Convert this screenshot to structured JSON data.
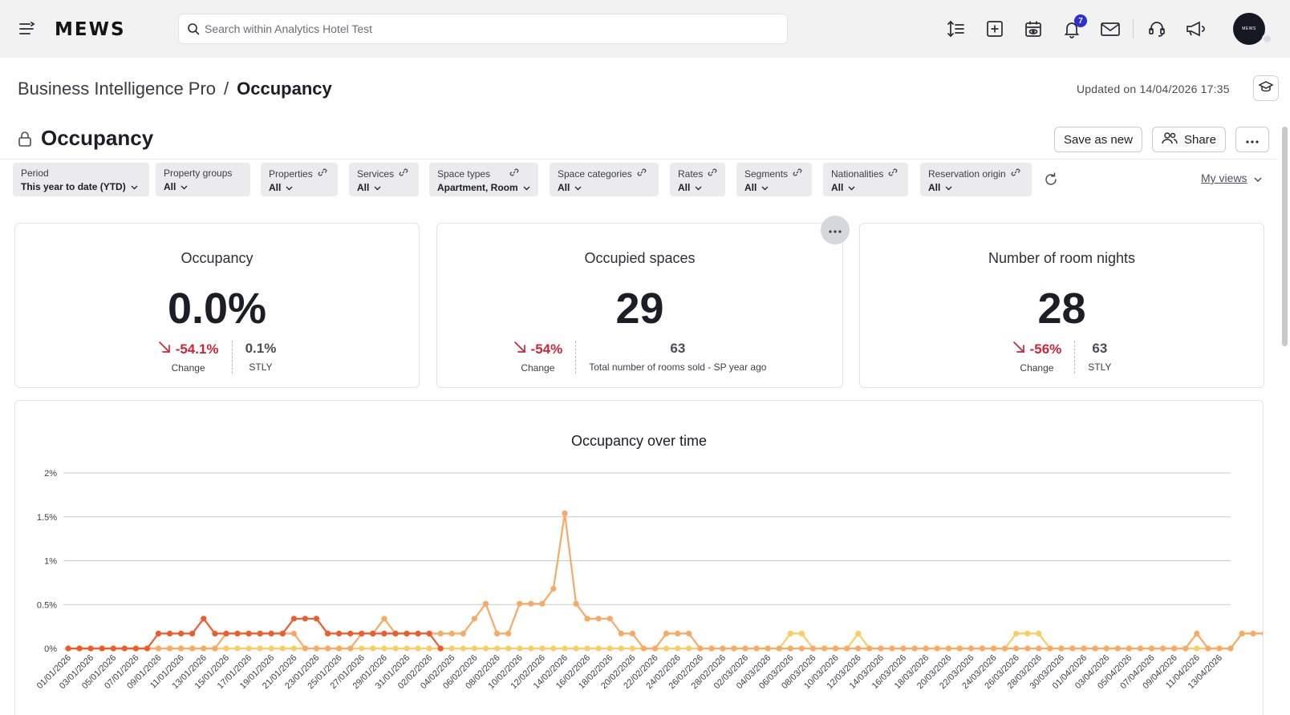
{
  "topbar": {
    "logo": "MEWS",
    "search_placeholder": "Search within Analytics Hotel Test",
    "notification_count": "7",
    "avatar_text": "MEWS"
  },
  "header": {
    "breadcrumb_parent": "Business Intelligence Pro",
    "breadcrumb_separator": "/",
    "breadcrumb_current": "Occupancy",
    "updated": "Updated on 14/04/2026 17:35"
  },
  "page": {
    "title": "Occupancy",
    "save_as_new": "Save as new",
    "share": "Share"
  },
  "filters": [
    {
      "label": "Period",
      "value": "This year to date (YTD)"
    },
    {
      "label": "Property groups",
      "value": "All"
    },
    {
      "label": "Properties",
      "value": "All"
    },
    {
      "label": "Services",
      "value": "All"
    },
    {
      "label": "Space types",
      "value": "Apartment, Room"
    },
    {
      "label": "Space categories",
      "value": "All"
    },
    {
      "label": "Rates",
      "value": "All"
    },
    {
      "label": "Segments",
      "value": "All"
    },
    {
      "label": "Nationalities",
      "value": "All"
    },
    {
      "label": "Reservation origin",
      "value": "All"
    }
  ],
  "my_views": "My views",
  "kpis": [
    {
      "title": "Occupancy",
      "value": "0.0%",
      "change": "-54.1%",
      "change_label": "Change",
      "compare": "0.1%",
      "compare_label": "STLY"
    },
    {
      "title": "Occupied spaces",
      "value": "29",
      "change": "-54%",
      "change_label": "Change",
      "compare": "63",
      "compare_label": "Total number of rooms sold - SP year ago"
    },
    {
      "title": "Number of room nights",
      "value": "28",
      "change": "-56%",
      "change_label": "Change",
      "compare": "63",
      "compare_label": "STLY"
    }
  ],
  "colors": {
    "series_dark": "#f05a2c",
    "series_mid": "#f9a964",
    "series_light": "#fbcc5f",
    "negative": "#d1243a",
    "accent_badge": "#2b2fd9"
  },
  "chart_data": {
    "type": "line",
    "title": "Occupancy over time",
    "ylim": [
      0,
      2
    ],
    "y_ticks": [
      "2%",
      "1.5%",
      "1%",
      "0.5%",
      "0%"
    ],
    "x_ticks": [
      "01/01/2026",
      "03/01/2026",
      "05/01/2026",
      "07/01/2026",
      "09/01/2026",
      "11/01/2026",
      "13/01/2026",
      "15/01/2026",
      "17/01/2026",
      "19/01/2026",
      "21/01/2026",
      "23/01/2026",
      "25/01/2026",
      "27/01/2026",
      "29/01/2026",
      "31/01/2026",
      "02/02/2026",
      "04/02/2026",
      "06/02/2026",
      "08/02/2026",
      "10/02/2026",
      "12/02/2026",
      "14/02/2026",
      "16/02/2026",
      "18/02/2026",
      "20/02/2026",
      "22/02/2026",
      "24/02/2026",
      "26/02/2026",
      "28/02/2026",
      "02/03/2026",
      "04/03/2026",
      "06/03/2026",
      "08/03/2026",
      "10/03/2026",
      "12/03/2026",
      "14/03/2026",
      "16/03/2026",
      "18/03/2026",
      "20/03/2026",
      "22/03/2026",
      "24/03/2026",
      "26/03/2026",
      "28/03/2026",
      "30/03/2026",
      "01/04/2026",
      "03/04/2026",
      "05/04/2026",
      "07/04/2026",
      "09/04/2026",
      "11/04/2026",
      "13/04/2026"
    ],
    "grid": true,
    "series": [
      {
        "values": [
          0,
          0,
          0,
          0,
          0,
          0,
          0,
          0,
          0.17,
          0.17,
          0.17,
          0.17,
          0.34,
          0.17,
          0.17,
          0.17,
          0.17,
          0.17,
          0.17,
          0.17,
          0.34,
          0.34,
          0.34,
          0.17,
          0.17,
          0.17,
          0.17,
          0.17,
          0.17,
          0.17,
          0.17,
          0.17,
          0.17,
          0
        ]
      },
      {
        "values": [
          0,
          0,
          0,
          0,
          0,
          0,
          0,
          0,
          0,
          0,
          0,
          0,
          0,
          0,
          0.17,
          0.17,
          0.17,
          0.17,
          0.17,
          0.17,
          0.17,
          0,
          0,
          0,
          0,
          0,
          0.17,
          0.17,
          0.34,
          0.17,
          0.17,
          0.17,
          0.17,
          0.17,
          0.17,
          0.17,
          0.34,
          0.51,
          0.17,
          0.17,
          0.51,
          0.51,
          0.51,
          0.68,
          1.54,
          0.51,
          0.34,
          0.34,
          0.34,
          0.17,
          0.17,
          0,
          0,
          0.17,
          0.17,
          0.17,
          0,
          0,
          0,
          0,
          0,
          0,
          0,
          0,
          0,
          0,
          0,
          0,
          0,
          0,
          0,
          0,
          0,
          0,
          0,
          0,
          0,
          0,
          0,
          0,
          0,
          0,
          0,
          0,
          0,
          0,
          0,
          0,
          0,
          0,
          0,
          0,
          0,
          0,
          0,
          0,
          0,
          0,
          0,
          0,
          0.17,
          0,
          0,
          0,
          0.17,
          0.17,
          0.17,
          0,
          0,
          0,
          0,
          0
        ]
      },
      {
        "values": [
          0,
          0,
          0,
          0,
          0,
          0,
          0,
          0,
          0,
          0,
          0,
          0,
          0,
          0,
          0,
          0,
          0,
          0,
          0,
          0,
          0,
          0,
          0,
          0,
          0,
          0,
          0,
          0,
          0,
          0,
          0,
          0,
          0,
          0,
          0,
          0,
          0,
          0,
          0,
          0,
          0,
          0,
          0,
          0,
          0,
          0,
          0,
          0,
          0,
          0,
          0,
          0,
          0,
          0,
          0,
          0,
          0,
          0,
          0,
          0,
          0,
          0,
          0,
          0,
          0.17,
          0.17,
          0,
          0,
          0,
          0,
          0.17,
          0,
          0,
          0,
          0,
          0,
          0,
          0,
          0,
          0,
          0,
          0,
          0,
          0,
          0.17,
          0.17,
          0.17,
          0,
          0,
          0,
          0,
          0,
          0,
          0,
          0,
          0,
          0,
          0,
          0,
          0,
          0,
          0,
          0,
          0,
          0.17,
          0.17,
          0.17,
          0,
          0,
          0,
          0,
          0,
          0,
          0,
          0,
          0,
          0,
          0,
          0,
          0,
          0,
          0,
          0,
          0,
          0,
          0,
          0,
          0,
          0
        ]
      }
    ]
  }
}
